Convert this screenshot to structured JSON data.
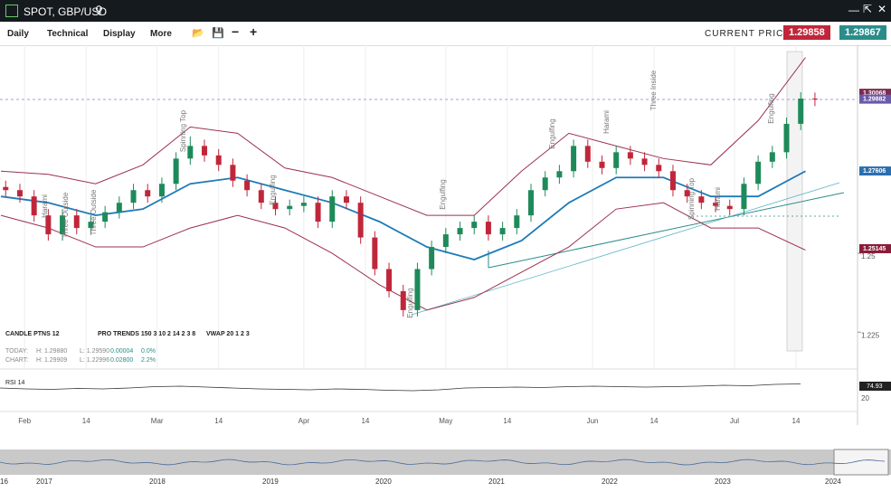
{
  "header": {
    "title": "SPOT, GBP/USD"
  },
  "toolbar": {
    "menus": [
      "Daily",
      "Technical",
      "Display",
      "More"
    ],
    "current_price_label": "CURRENT PRICE:",
    "bid": "1.29858",
    "ask": "1.29867"
  },
  "indicators": {
    "labels": [
      "CANDLE PTNS 12",
      "PRO TRENDS 150 3 10 2 14 2 3 8",
      "VWAP 20 1 2 3"
    ],
    "today": [
      "TODAY:",
      "H: 1.29880",
      "L: 1.29590",
      "0.00004",
      "0.0%"
    ],
    "chart": [
      "CHART:",
      "H: 1.29909",
      "L: 1.22996",
      "0.02800",
      "2.2%"
    ]
  },
  "rsi": {
    "label": "RSI 14",
    "value": "74.93",
    "tick": "20",
    "values": [
      52,
      50,
      49,
      51,
      50,
      52,
      55,
      56,
      54,
      52,
      50,
      49,
      48,
      50,
      49,
      47,
      46,
      48,
      52,
      53,
      54,
      53,
      55,
      56,
      55,
      54,
      55,
      56,
      58,
      57,
      60,
      61
    ]
  },
  "navigator": {
    "years": [
      "16",
      "2017",
      "2018",
      "2019",
      "2020",
      "2021",
      "2022",
      "2023",
      "2024"
    ]
  },
  "chart_data": {
    "type": "candlestick",
    "xlim": [
      -5.2,
      176
    ],
    "ylim": [
      1.2142,
      1.3159
    ],
    "xticks": [
      {
        "value": 0,
        "label": "Feb"
      },
      {
        "value": 13,
        "label": "14"
      },
      {
        "value": 28,
        "label": "Mar"
      },
      {
        "value": 41,
        "label": "14"
      },
      {
        "value": 59,
        "label": "Apr"
      },
      {
        "value": 72,
        "label": "14"
      },
      {
        "value": 89,
        "label": "May"
      },
      {
        "value": 102,
        "label": "14"
      },
      {
        "value": 120,
        "label": "Jun"
      },
      {
        "value": 133,
        "label": "14"
      },
      {
        "value": 150,
        "label": "Jul"
      },
      {
        "value": 163,
        "label": "14"
      }
    ],
    "yticks": [
      1.225,
      1.25
    ],
    "price_markers": [
      {
        "value": 1.30068,
        "label": "1.30068",
        "color": "#7b2a52"
      },
      {
        "value": 1.29882,
        "label": "1.29882",
        "color": "#6a5aa8"
      },
      {
        "value": 1.27606,
        "label": "1.27606",
        "color": "#2a6fb0"
      },
      {
        "value": 1.25145,
        "label": "1.25145",
        "color": "#8a1c3a"
      }
    ],
    "x": [
      -4,
      -1,
      2,
      5,
      8,
      11,
      14,
      17,
      20,
      23,
      26,
      29,
      32,
      35,
      38,
      41,
      44,
      47,
      50,
      53,
      56,
      59,
      62,
      65,
      68,
      71,
      74,
      77,
      80,
      83,
      86,
      89,
      92,
      95,
      98,
      101,
      104,
      107,
      110,
      113,
      116,
      119,
      122,
      125,
      128,
      131,
      134,
      137,
      140,
      143,
      146,
      149,
      152,
      155,
      158,
      161,
      164,
      167
    ],
    "open": [
      1.271,
      1.27,
      1.268,
      1.262,
      1.256,
      1.262,
      1.258,
      1.26,
      1.263,
      1.266,
      1.27,
      1.268,
      1.272,
      1.28,
      1.284,
      1.281,
      1.278,
      1.273,
      1.27,
      1.266,
      1.264,
      1.265,
      1.266,
      1.26,
      1.268,
      1.266,
      1.255,
      1.245,
      1.238,
      1.232,
      1.245,
      1.252,
      1.256,
      1.258,
      1.26,
      1.256,
      1.258,
      1.262,
      1.27,
      1.274,
      1.276,
      1.284,
      1.279,
      1.277,
      1.282,
      1.28,
      1.278,
      1.276,
      1.27,
      1.268,
      1.266,
      1.265,
      1.264,
      1.272,
      1.279,
      1.282,
      1.291,
      1.299
    ],
    "close": [
      1.27,
      1.268,
      1.262,
      1.256,
      1.262,
      1.258,
      1.26,
      1.263,
      1.266,
      1.27,
      1.268,
      1.272,
      1.28,
      1.284,
      1.281,
      1.278,
      1.273,
      1.27,
      1.266,
      1.264,
      1.265,
      1.266,
      1.26,
      1.268,
      1.266,
      1.255,
      1.245,
      1.238,
      1.232,
      1.245,
      1.252,
      1.256,
      1.258,
      1.26,
      1.256,
      1.258,
      1.262,
      1.27,
      1.274,
      1.276,
      1.284,
      1.279,
      1.277,
      1.282,
      1.28,
      1.278,
      1.276,
      1.27,
      1.268,
      1.266,
      1.265,
      1.264,
      1.272,
      1.279,
      1.282,
      1.291,
      1.299,
      1.2988
    ],
    "high": [
      1.273,
      1.272,
      1.27,
      1.264,
      1.264,
      1.264,
      1.262,
      1.265,
      1.268,
      1.272,
      1.272,
      1.274,
      1.282,
      1.287,
      1.286,
      1.283,
      1.28,
      1.275,
      1.272,
      1.268,
      1.267,
      1.268,
      1.268,
      1.27,
      1.27,
      1.268,
      1.257,
      1.247,
      1.24,
      1.247,
      1.254,
      1.258,
      1.26,
      1.262,
      1.262,
      1.26,
      1.264,
      1.272,
      1.276,
      1.278,
      1.286,
      1.286,
      1.281,
      1.284,
      1.284,
      1.282,
      1.28,
      1.278,
      1.272,
      1.27,
      1.268,
      1.267,
      1.274,
      1.281,
      1.284,
      1.293,
      1.301,
      1.3009
    ],
    "low": [
      1.268,
      1.266,
      1.26,
      1.254,
      1.254,
      1.256,
      1.256,
      1.258,
      1.261,
      1.264,
      1.266,
      1.266,
      1.27,
      1.278,
      1.279,
      1.276,
      1.271,
      1.268,
      1.264,
      1.262,
      1.262,
      1.263,
      1.258,
      1.258,
      1.264,
      1.253,
      1.243,
      1.236,
      1.23,
      1.23,
      1.243,
      1.25,
      1.254,
      1.256,
      1.254,
      1.254,
      1.256,
      1.26,
      1.268,
      1.272,
      1.274,
      1.277,
      1.275,
      1.275,
      1.278,
      1.276,
      1.274,
      1.268,
      1.266,
      1.264,
      1.263,
      1.262,
      1.262,
      1.27,
      1.277,
      1.28,
      1.289,
      1.2966
    ],
    "bands": [
      {
        "name": "upper",
        "color": "#9c3050",
        "values": [
          1.276,
          1.275,
          1.272,
          1.278,
          1.29,
          1.288,
          1.277,
          1.274,
          1.268,
          1.262,
          1.262,
          1.276,
          1.288,
          1.284,
          1.28,
          1.278,
          1.292,
          1.312
        ]
      },
      {
        "name": "middle",
        "color": "#1f7ab8",
        "values": [
          1.268,
          1.266,
          1.262,
          1.264,
          1.272,
          1.274,
          1.27,
          1.266,
          1.26,
          1.252,
          1.248,
          1.254,
          1.266,
          1.274,
          1.274,
          1.268,
          1.268,
          1.276
        ]
      },
      {
        "name": "lower",
        "color": "#9c3050",
        "values": [
          1.262,
          1.258,
          1.252,
          1.252,
          1.258,
          1.262,
          1.258,
          1.25,
          1.24,
          1.232,
          1.236,
          1.244,
          1.252,
          1.264,
          1.266,
          1.258,
          1.258,
          1.251
        ]
      }
    ],
    "band_x": [
      -5,
      5,
      15,
      25,
      35,
      45,
      55,
      65,
      75,
      85,
      95,
      105,
      115,
      125,
      135,
      145,
      155,
      165
    ],
    "patterns": [
      "Harami",
      "Three Outside",
      "Three Outside",
      "Spinning Top",
      "Engulfing",
      "Engulfing",
      "Engulfing",
      "Engulfing",
      "Harami",
      "Three Inside",
      "Spinning Top",
      "Harami",
      "Engulfing"
    ]
  }
}
